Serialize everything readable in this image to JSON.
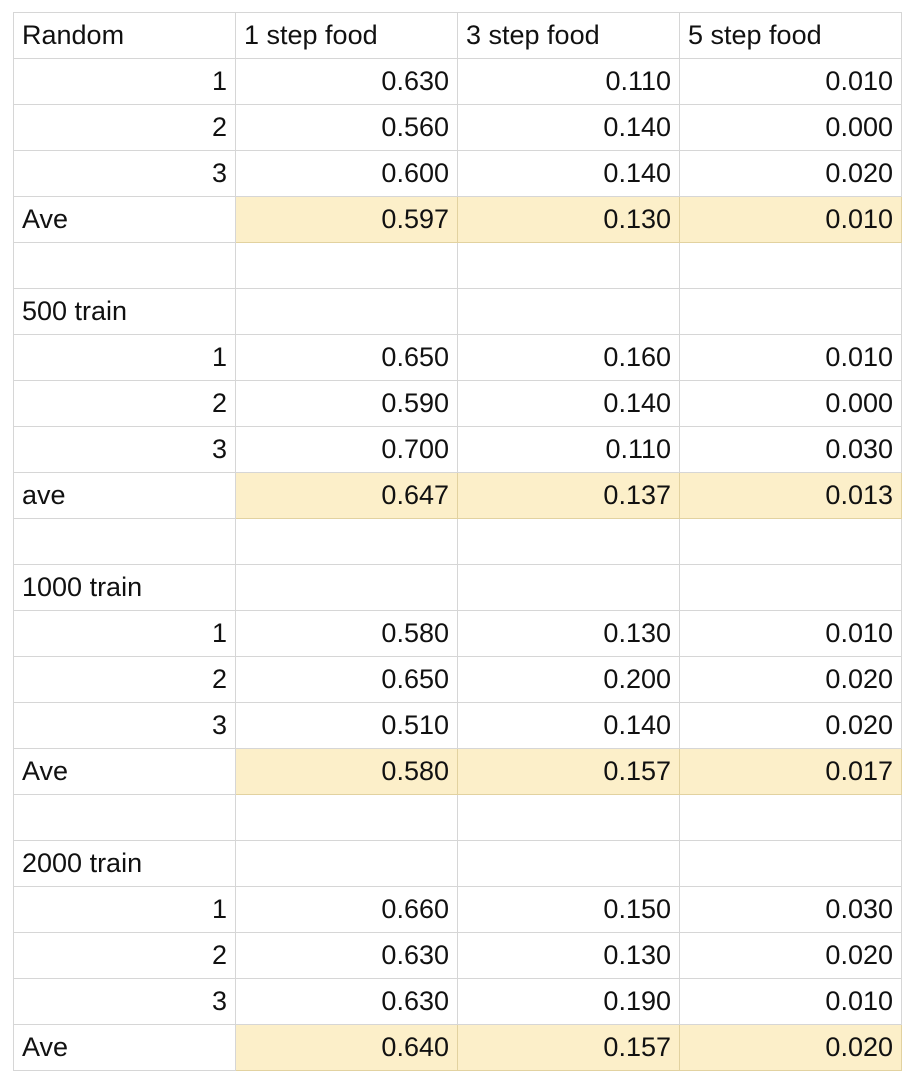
{
  "chart_data": {
    "type": "table",
    "columns": [
      "Random",
      "1 step food",
      "3 step food",
      "5 step food"
    ],
    "rows": [
      [
        "1",
        "0.630",
        "0.110",
        "0.010"
      ],
      [
        "2",
        "0.560",
        "0.140",
        "0.000"
      ],
      [
        "3",
        "0.600",
        "0.140",
        "0.020"
      ],
      [
        "Ave",
        "0.597",
        "0.130",
        "0.010"
      ],
      [
        "",
        "",
        "",
        ""
      ],
      [
        "500 train",
        "",
        "",
        ""
      ],
      [
        "1",
        "0.650",
        "0.160",
        "0.010"
      ],
      [
        "2",
        "0.590",
        "0.140",
        "0.000"
      ],
      [
        "3",
        "0.700",
        "0.110",
        "0.030"
      ],
      [
        "ave",
        "0.647",
        "0.137",
        "0.013"
      ],
      [
        "",
        "",
        "",
        ""
      ],
      [
        "1000 train",
        "",
        "",
        ""
      ],
      [
        "1",
        "0.580",
        "0.130",
        "0.010"
      ],
      [
        "2",
        "0.650",
        "0.200",
        "0.020"
      ],
      [
        "3",
        "0.510",
        "0.140",
        "0.020"
      ],
      [
        "Ave",
        "0.580",
        "0.157",
        "0.017"
      ],
      [
        "",
        "",
        "",
        ""
      ],
      [
        "2000 train",
        "",
        "",
        ""
      ],
      [
        "1",
        "0.660",
        "0.150",
        "0.030"
      ],
      [
        "2",
        "0.630",
        "0.130",
        "0.020"
      ],
      [
        "3",
        "0.630",
        "0.190",
        "0.010"
      ],
      [
        "Ave",
        "0.640",
        "0.157",
        "0.020"
      ]
    ],
    "highlight_color": "#fcefc9"
  }
}
